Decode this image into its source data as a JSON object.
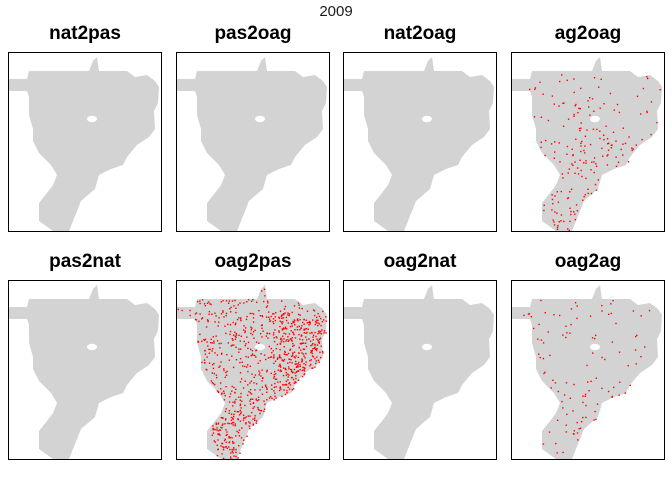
{
  "title": "2009",
  "colors": {
    "region_fill": "#d3d3d3",
    "highlight": "#ff0000",
    "frame": "#000000"
  },
  "panels": [
    {
      "label": "nat2pas",
      "density": "none"
    },
    {
      "label": "pas2oag",
      "density": "none"
    },
    {
      "label": "nat2oag",
      "density": "none"
    },
    {
      "label": "ag2oag",
      "density": "moderate"
    },
    {
      "label": "pas2nat",
      "density": "none"
    },
    {
      "label": "oag2pas",
      "density": "high"
    },
    {
      "label": "oag2nat",
      "density": "none"
    },
    {
      "label": "oag2ag",
      "density": "low"
    }
  ]
}
